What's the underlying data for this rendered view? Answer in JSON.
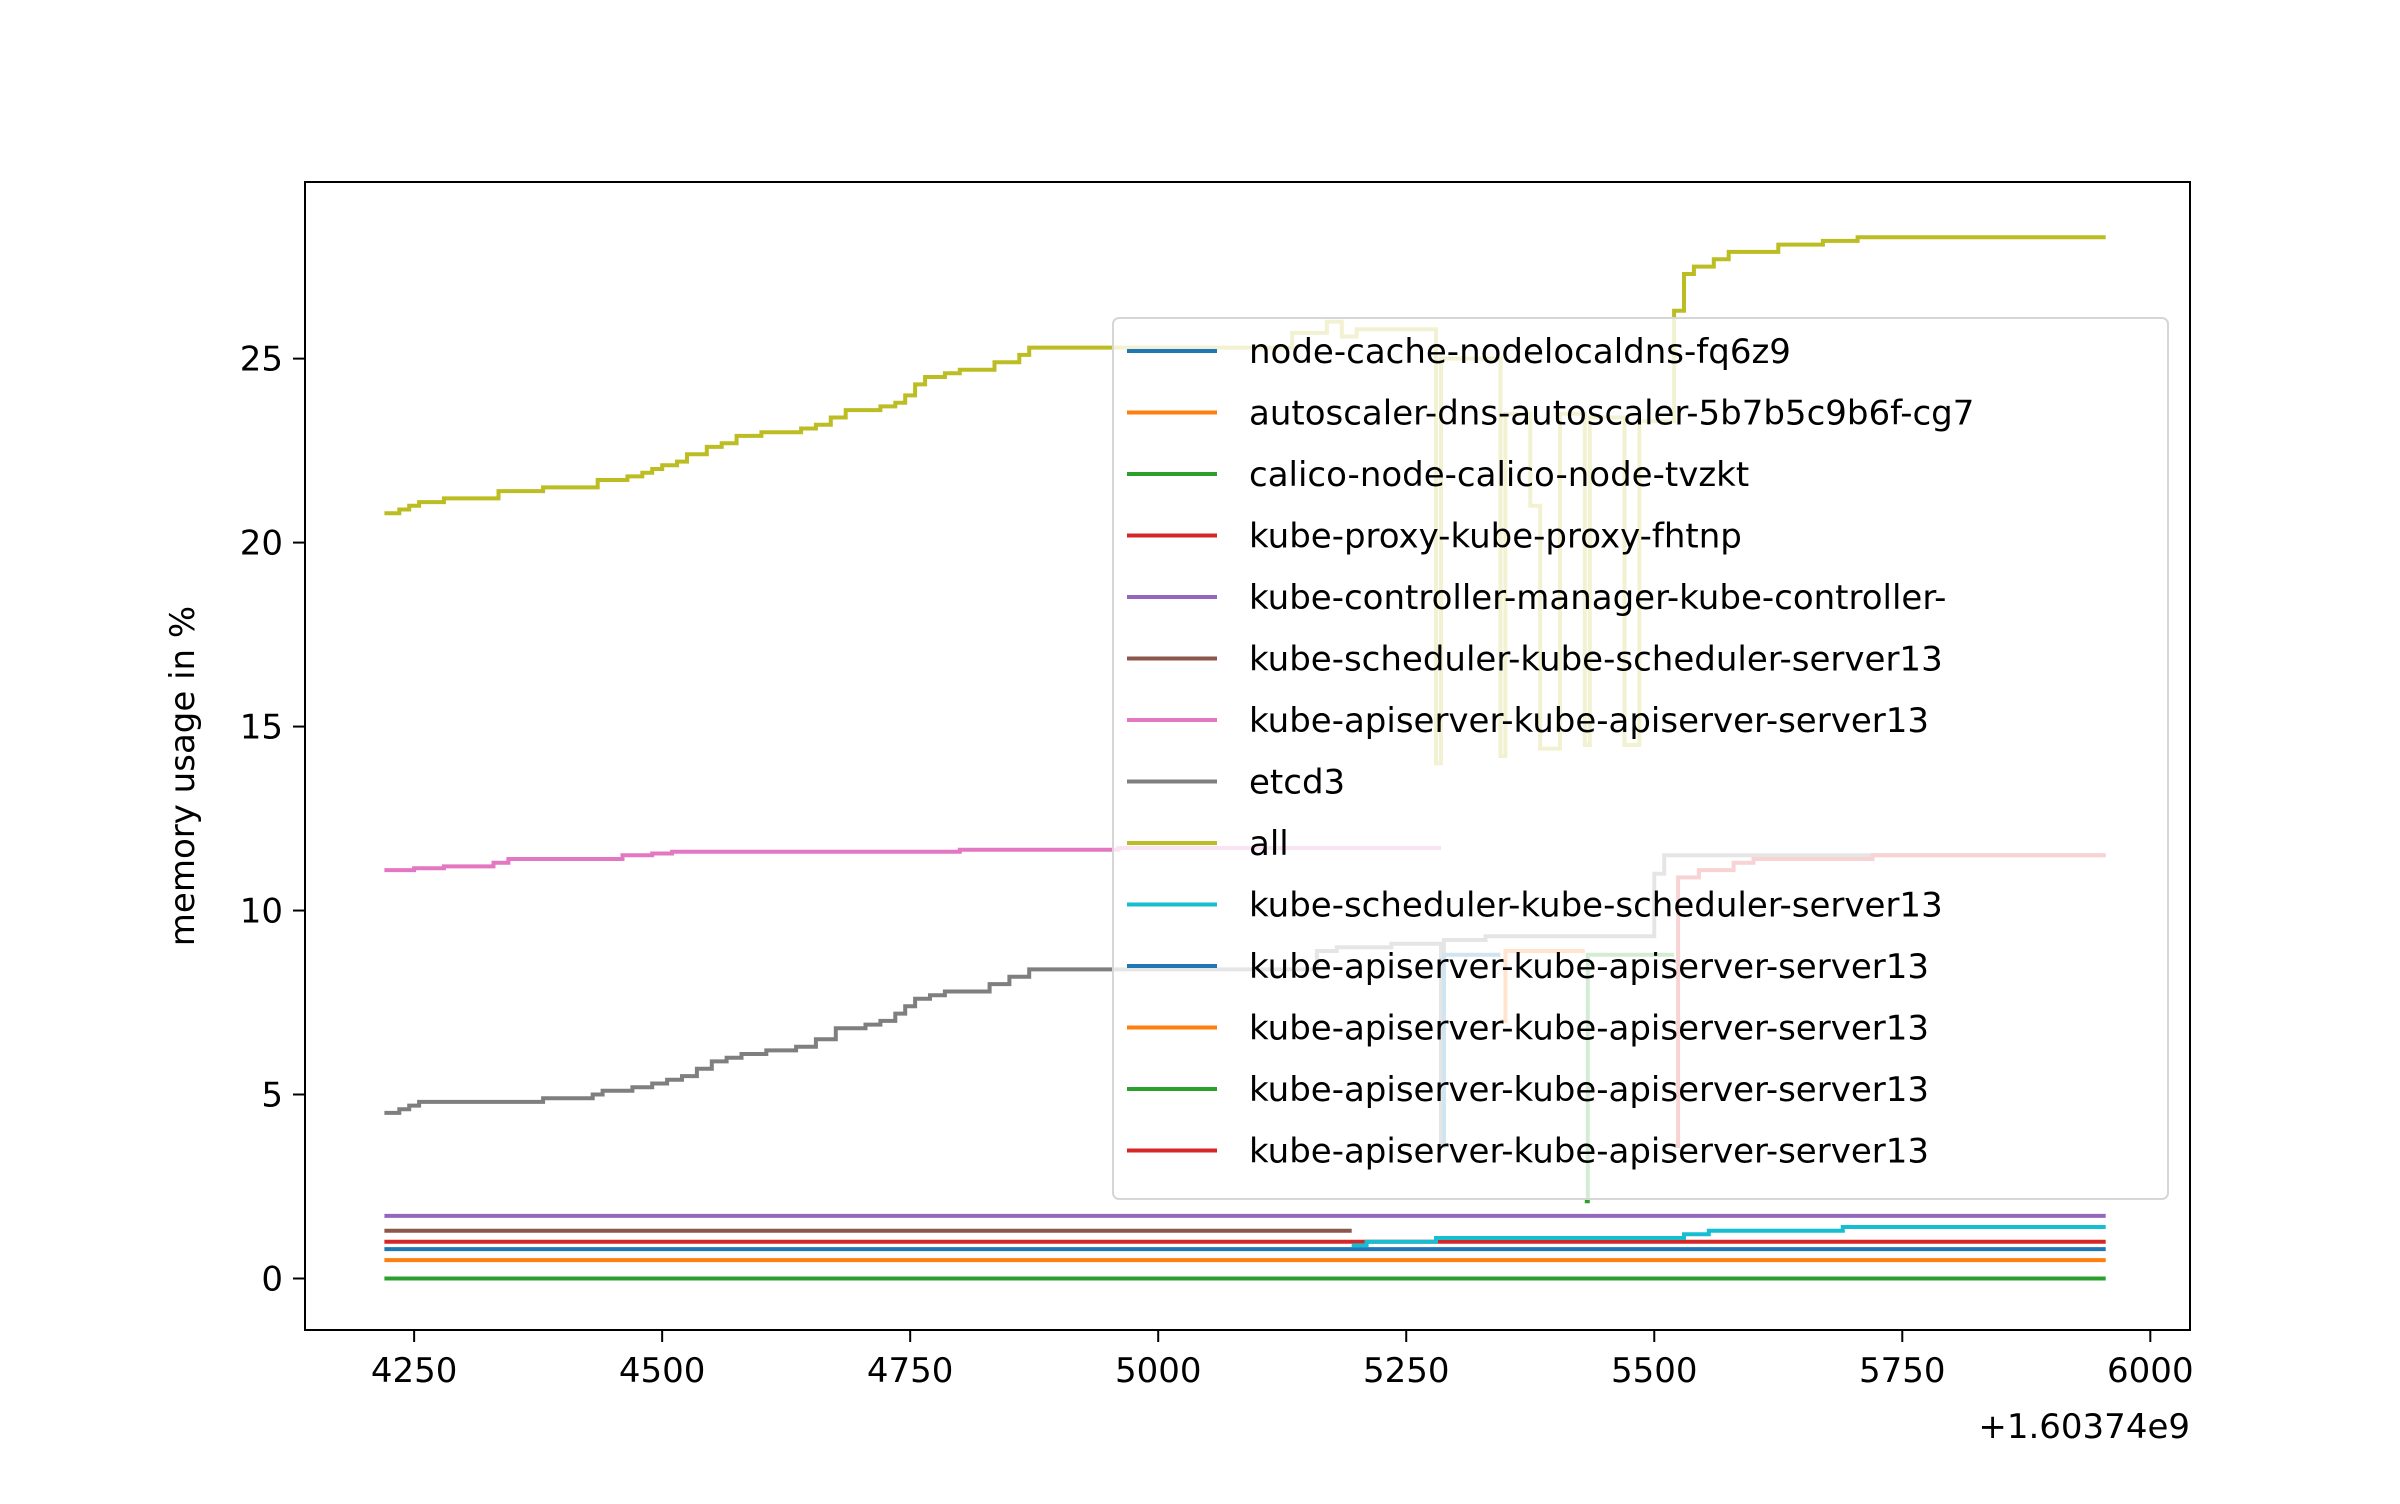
{
  "chart_data": {
    "type": "line",
    "title": "",
    "xlabel": "",
    "ylabel": "memory usage in %",
    "x_offset_label": "+1.60374e9",
    "xlim": [
      4140,
      6040
    ],
    "ylim": [
      -1.4,
      29.8
    ],
    "xticks": [
      4250,
      4500,
      4750,
      5000,
      5250,
      5500,
      5750,
      6000
    ],
    "yticks": [
      0,
      5,
      10,
      15,
      20,
      25
    ],
    "grid": false,
    "legend_position": "center-right",
    "series": [
      {
        "name": "node-cache-nodelocaldns-fq6z9",
        "color": "#1f77b4",
        "points": [
          [
            4220,
            0.8
          ],
          [
            5955,
            0.8
          ]
        ]
      },
      {
        "name": "autoscaler-dns-autoscaler-5b7b5c9b6f-cg7",
        "color": "#ff7f0e",
        "points": [
          [
            4220,
            0.5
          ],
          [
            5955,
            0.5
          ]
        ]
      },
      {
        "name": "calico-node-calico-node-tvzkt",
        "color": "#2ca02c",
        "points": [
          [
            4220,
            0.0
          ],
          [
            5955,
            0.0
          ]
        ]
      },
      {
        "name": "kube-proxy-kube-proxy-fhtnp",
        "color": "#d62728",
        "points": [
          [
            4220,
            1.0
          ],
          [
            5955,
            1.0
          ]
        ]
      },
      {
        "name": "kube-controller-manager-kube-controller-",
        "color": "#9467bd",
        "points": [
          [
            4220,
            1.7
          ],
          [
            5955,
            1.7
          ]
        ]
      },
      {
        "name": "kube-scheduler-kube-scheduler-server13",
        "color": "#8c564b",
        "points": [
          [
            4220,
            1.3
          ],
          [
            5195,
            1.3
          ]
        ]
      },
      {
        "name": "kube-apiserver-kube-apiserver-server13",
        "color": "#e377c2",
        "points": [
          [
            4220,
            11.1
          ],
          [
            4250,
            11.1
          ],
          [
            4250,
            11.15
          ],
          [
            4280,
            11.15
          ],
          [
            4280,
            11.2
          ],
          [
            4330,
            11.2
          ],
          [
            4330,
            11.3
          ],
          [
            4345,
            11.3
          ],
          [
            4345,
            11.4
          ],
          [
            4460,
            11.4
          ],
          [
            4460,
            11.5
          ],
          [
            4490,
            11.5
          ],
          [
            4490,
            11.55
          ],
          [
            4510,
            11.55
          ],
          [
            4510,
            11.6
          ],
          [
            4800,
            11.6
          ],
          [
            4800,
            11.65
          ],
          [
            4960,
            11.65
          ],
          [
            4960,
            11.7
          ],
          [
            5285,
            11.7
          ]
        ]
      },
      {
        "name": "etcd3",
        "color": "#7f7f7f",
        "points": [
          [
            4220,
            4.5
          ],
          [
            4235,
            4.5
          ],
          [
            4235,
            4.6
          ],
          [
            4245,
            4.6
          ],
          [
            4245,
            4.7
          ],
          [
            4255,
            4.7
          ],
          [
            4255,
            4.8
          ],
          [
            4380,
            4.8
          ],
          [
            4380,
            4.9
          ],
          [
            4430,
            4.9
          ],
          [
            4430,
            5.0
          ],
          [
            4440,
            5.0
          ],
          [
            4440,
            5.1
          ],
          [
            4470,
            5.1
          ],
          [
            4470,
            5.2
          ],
          [
            4490,
            5.2
          ],
          [
            4490,
            5.3
          ],
          [
            4505,
            5.3
          ],
          [
            4505,
            5.4
          ],
          [
            4520,
            5.4
          ],
          [
            4520,
            5.5
          ],
          [
            4535,
            5.5
          ],
          [
            4535,
            5.7
          ],
          [
            4550,
            5.7
          ],
          [
            4550,
            5.9
          ],
          [
            4565,
            5.9
          ],
          [
            4565,
            6.0
          ],
          [
            4580,
            6.0
          ],
          [
            4580,
            6.1
          ],
          [
            4605,
            6.1
          ],
          [
            4605,
            6.2
          ],
          [
            4635,
            6.2
          ],
          [
            4635,
            6.3
          ],
          [
            4655,
            6.3
          ],
          [
            4655,
            6.5
          ],
          [
            4675,
            6.5
          ],
          [
            4675,
            6.8
          ],
          [
            4705,
            6.8
          ],
          [
            4705,
            6.9
          ],
          [
            4720,
            6.9
          ],
          [
            4720,
            7.0
          ],
          [
            4735,
            7.0
          ],
          [
            4735,
            7.2
          ],
          [
            4745,
            7.2
          ],
          [
            4745,
            7.4
          ],
          [
            4755,
            7.4
          ],
          [
            4755,
            7.6
          ],
          [
            4770,
            7.6
          ],
          [
            4770,
            7.7
          ],
          [
            4785,
            7.7
          ],
          [
            4785,
            7.8
          ],
          [
            4830,
            7.8
          ],
          [
            4830,
            8.0
          ],
          [
            4850,
            8.0
          ],
          [
            4850,
            8.2
          ],
          [
            4870,
            8.2
          ],
          [
            4870,
            8.4
          ],
          [
            5160,
            8.4
          ],
          [
            5160,
            8.9
          ],
          [
            5180,
            8.9
          ],
          [
            5180,
            9.0
          ],
          [
            5235,
            9.0
          ],
          [
            5235,
            9.1
          ],
          [
            5285,
            9.1
          ],
          [
            5285,
            3.6
          ],
          [
            5288,
            3.6
          ],
          [
            5288,
            9.2
          ],
          [
            5330,
            9.2
          ],
          [
            5330,
            9.3
          ],
          [
            5500,
            9.3
          ],
          [
            5500,
            11.0
          ],
          [
            5510,
            11.0
          ],
          [
            5510,
            11.5
          ],
          [
            5955,
            11.5
          ]
        ]
      },
      {
        "name": "all",
        "color": "#bcbd22",
        "points": [
          [
            4220,
            20.8
          ],
          [
            4235,
            20.8
          ],
          [
            4235,
            20.9
          ],
          [
            4245,
            20.9
          ],
          [
            4245,
            21.0
          ],
          [
            4255,
            21.0
          ],
          [
            4255,
            21.1
          ],
          [
            4280,
            21.1
          ],
          [
            4280,
            21.2
          ],
          [
            4335,
            21.2
          ],
          [
            4335,
            21.4
          ],
          [
            4380,
            21.4
          ],
          [
            4380,
            21.5
          ],
          [
            4435,
            21.5
          ],
          [
            4435,
            21.7
          ],
          [
            4465,
            21.7
          ],
          [
            4465,
            21.8
          ],
          [
            4480,
            21.8
          ],
          [
            4480,
            21.9
          ],
          [
            4490,
            21.9
          ],
          [
            4490,
            22.0
          ],
          [
            4500,
            22.0
          ],
          [
            4500,
            22.1
          ],
          [
            4515,
            22.1
          ],
          [
            4515,
            22.2
          ],
          [
            4525,
            22.2
          ],
          [
            4525,
            22.4
          ],
          [
            4545,
            22.4
          ],
          [
            4545,
            22.6
          ],
          [
            4560,
            22.6
          ],
          [
            4560,
            22.7
          ],
          [
            4575,
            22.7
          ],
          [
            4575,
            22.9
          ],
          [
            4600,
            22.9
          ],
          [
            4600,
            23.0
          ],
          [
            4640,
            23.0
          ],
          [
            4640,
            23.1
          ],
          [
            4655,
            23.1
          ],
          [
            4655,
            23.2
          ],
          [
            4670,
            23.2
          ],
          [
            4670,
            23.4
          ],
          [
            4685,
            23.4
          ],
          [
            4685,
            23.6
          ],
          [
            4720,
            23.6
          ],
          [
            4720,
            23.7
          ],
          [
            4735,
            23.7
          ],
          [
            4735,
            23.8
          ],
          [
            4745,
            23.8
          ],
          [
            4745,
            24.0
          ],
          [
            4755,
            24.0
          ],
          [
            4755,
            24.3
          ],
          [
            4765,
            24.3
          ],
          [
            4765,
            24.5
          ],
          [
            4785,
            24.5
          ],
          [
            4785,
            24.6
          ],
          [
            4800,
            24.6
          ],
          [
            4800,
            24.7
          ],
          [
            4835,
            24.7
          ],
          [
            4835,
            24.9
          ],
          [
            4860,
            24.9
          ],
          [
            4860,
            25.1
          ],
          [
            4870,
            25.1
          ],
          [
            4870,
            25.3
          ],
          [
            5135,
            25.3
          ],
          [
            5135,
            25.7
          ],
          [
            5170,
            25.7
          ],
          [
            5170,
            26.0
          ],
          [
            5185,
            26.0
          ],
          [
            5185,
            25.6
          ],
          [
            5200,
            25.6
          ],
          [
            5200,
            25.8
          ],
          [
            5280,
            25.8
          ],
          [
            5280,
            14.0
          ],
          [
            5285,
            14.0
          ],
          [
            5285,
            25.0
          ],
          [
            5345,
            25.0
          ],
          [
            5345,
            14.2
          ],
          [
            5350,
            14.2
          ],
          [
            5350,
            23.5
          ],
          [
            5375,
            23.5
          ],
          [
            5375,
            21.0
          ],
          [
            5385,
            21.0
          ],
          [
            5385,
            14.4
          ],
          [
            5405,
            14.4
          ],
          [
            5405,
            23.5
          ],
          [
            5430,
            23.5
          ],
          [
            5430,
            14.5
          ],
          [
            5435,
            14.5
          ],
          [
            5435,
            23.4
          ],
          [
            5470,
            23.4
          ],
          [
            5470,
            14.5
          ],
          [
            5485,
            14.5
          ],
          [
            5485,
            23.3
          ],
          [
            5520,
            23.3
          ],
          [
            5520,
            26.3
          ],
          [
            5530,
            26.3
          ],
          [
            5530,
            27.3
          ],
          [
            5540,
            27.3
          ],
          [
            5540,
            27.5
          ],
          [
            5560,
            27.5
          ],
          [
            5560,
            27.7
          ],
          [
            5575,
            27.7
          ],
          [
            5575,
            27.9
          ],
          [
            5625,
            27.9
          ],
          [
            5625,
            28.1
          ],
          [
            5670,
            28.1
          ],
          [
            5670,
            28.2
          ],
          [
            5705,
            28.2
          ],
          [
            5705,
            28.3
          ],
          [
            5955,
            28.3
          ]
        ]
      },
      {
        "name": "kube-scheduler-kube-scheduler-server13",
        "color": "#17becf",
        "points": [
          [
            5195,
            0.9
          ],
          [
            5210,
            0.9
          ],
          [
            5210,
            1.0
          ],
          [
            5280,
            1.0
          ],
          [
            5280,
            1.1
          ],
          [
            5530,
            1.1
          ],
          [
            5530,
            1.2
          ],
          [
            5555,
            1.2
          ],
          [
            5555,
            1.3
          ],
          [
            5690,
            1.3
          ],
          [
            5690,
            1.4
          ],
          [
            5955,
            1.4
          ]
        ]
      },
      {
        "name": "kube-apiserver-kube-apiserver-server13",
        "color": "#1f77b4",
        "points": [
          [
            5285,
            3.6
          ],
          [
            5288,
            3.6
          ],
          [
            5288,
            8.8
          ],
          [
            5345,
            8.8
          ]
        ]
      },
      {
        "name": "kube-apiserver-kube-apiserver-server13",
        "color": "#ff7f0e",
        "points": [
          [
            5345,
            7.0
          ],
          [
            5350,
            7.0
          ],
          [
            5350,
            8.9
          ],
          [
            5430,
            8.9
          ]
        ]
      },
      {
        "name": "kube-apiserver-kube-apiserver-server13",
        "color": "#2ca02c",
        "points": [
          [
            5430,
            2.1
          ],
          [
            5433,
            2.1
          ],
          [
            5433,
            8.8
          ],
          [
            5520,
            8.8
          ]
        ]
      },
      {
        "name": "kube-apiserver-kube-apiserver-server13",
        "color": "#d62728",
        "points": [
          [
            5520,
            3.6
          ],
          [
            5524,
            3.6
          ],
          [
            5524,
            10.9
          ],
          [
            5545,
            10.9
          ],
          [
            5545,
            11.1
          ],
          [
            5580,
            11.1
          ],
          [
            5580,
            11.3
          ],
          [
            5600,
            11.3
          ],
          [
            5600,
            11.4
          ],
          [
            5720,
            11.4
          ],
          [
            5720,
            11.5
          ],
          [
            5955,
            11.5
          ]
        ]
      }
    ]
  }
}
